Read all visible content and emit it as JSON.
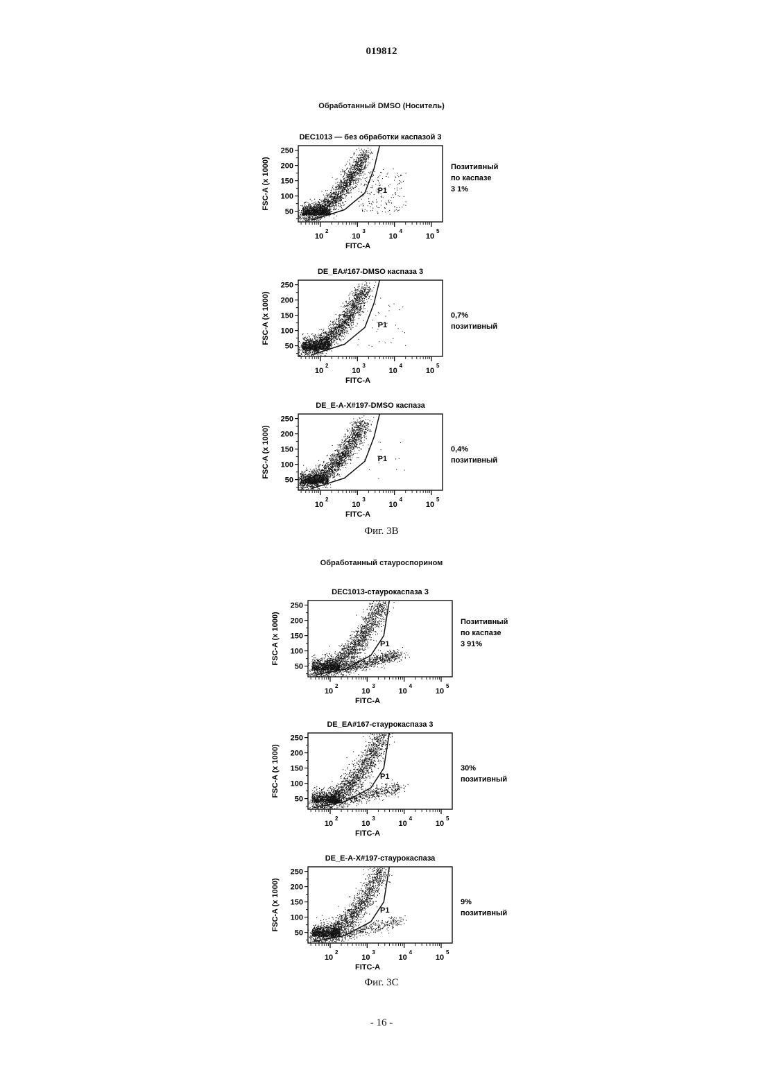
{
  "page": {
    "number": "019812",
    "footer": "- 16 -"
  },
  "sections": [
    {
      "title": "Обработанный DMSO (Носитель)",
      "caption": "Фиг. 3B"
    },
    {
      "title": "Обработанный стауроспорином",
      "caption": "Фиг. 3C"
    }
  ],
  "chart_data": [
    {
      "type": "scatter",
      "title": "DEC1013 — без обработки каспазой 3",
      "xlabel": "FITC-A",
      "ylabel": "FSC-A (x 1000)",
      "x_scale": "log",
      "x_ticks": [
        "10",
        "10",
        "10",
        "10"
      ],
      "x_tick_exponents": [
        "2",
        "3",
        "4",
        "5"
      ],
      "y_ticks": [
        "250",
        "200",
        "150",
        "100",
        "50"
      ],
      "y_tick_values": [
        250,
        200,
        150,
        100,
        50
      ],
      "gate_label": "P1",
      "annotation": [
        "Позитивный",
        "по каспазе",
        "3 1%"
      ],
      "population": "dmso",
      "shift": 0.0,
      "extra_spread": 1.0
    },
    {
      "type": "scatter",
      "title": "DE_EA#167-DMSO каспаза 3",
      "xlabel": "FITC-A",
      "ylabel": "FSC-A (x 1000)",
      "x_scale": "log",
      "x_ticks": [
        "10",
        "10",
        "10",
        "10"
      ],
      "x_tick_exponents": [
        "2",
        "3",
        "4",
        "5"
      ],
      "y_ticks": [
        "250",
        "200",
        "150",
        "100",
        "50"
      ],
      "y_tick_values": [
        250,
        200,
        150,
        100,
        50
      ],
      "gate_label": "P1",
      "annotation": [
        "0,7%",
        "позитивный"
      ],
      "population": "dmso",
      "shift": 0.0,
      "extra_spread": 0.2
    },
    {
      "type": "scatter",
      "title": "DE_E-A-X#197-DMSO каспаза",
      "xlabel": "FITC-A",
      "ylabel": "FSC-A (x 1000)",
      "x_scale": "log",
      "x_ticks": [
        "10",
        "10",
        "10",
        "10"
      ],
      "x_tick_exponents": [
        "2",
        "3",
        "4",
        "5"
      ],
      "y_ticks": [
        "250",
        "200",
        "150",
        "100",
        "50"
      ],
      "y_tick_values": [
        250,
        200,
        150,
        100,
        50
      ],
      "gate_label": "P1",
      "annotation": [
        "0,4%",
        "позитивный"
      ],
      "population": "dmso",
      "shift": -0.05,
      "extra_spread": 0.1
    },
    {
      "type": "scatter",
      "title": "DEC1013-стаурокаспаза 3",
      "xlabel": "FITC-A",
      "ylabel": "FSC-A (x 1000)",
      "x_scale": "log",
      "x_ticks": [
        "10",
        "10",
        "10",
        "10"
      ],
      "x_tick_exponents": [
        "2",
        "3",
        "4",
        "5"
      ],
      "y_ticks": [
        "250",
        "200",
        "150",
        "100",
        "50"
      ],
      "y_tick_values": [
        250,
        200,
        150,
        100,
        50
      ],
      "gate_label": "P1",
      "annotation": [
        "Позитивный",
        "по каспазе",
        "3 91%"
      ],
      "population": "stauro",
      "shift": 0.0,
      "extra_spread": 1.0
    },
    {
      "type": "scatter",
      "title": "DE_EA#167-стаурокаспаза 3",
      "xlabel": "FITC-A",
      "ylabel": "FSC-A (x 1000)",
      "x_scale": "log",
      "x_ticks": [
        "10",
        "10",
        "10",
        "10"
      ],
      "x_tick_exponents": [
        "2",
        "3",
        "4",
        "5"
      ],
      "y_ticks": [
        "250",
        "200",
        "150",
        "100",
        "50"
      ],
      "y_tick_values": [
        250,
        200,
        150,
        100,
        50
      ],
      "gate_label": "P1",
      "annotation": [
        "30%",
        "позитивный"
      ],
      "population": "stauro",
      "shift": 0.0,
      "extra_spread": 0.6
    },
    {
      "type": "scatter",
      "title": "DE_E-A-X#197-стаурокаспаза",
      "xlabel": "FITC-A",
      "ylabel": "FSC-A (x 1000)",
      "x_scale": "log",
      "x_ticks": [
        "10",
        "10",
        "10",
        "10"
      ],
      "x_tick_exponents": [
        "2",
        "3",
        "4",
        "5"
      ],
      "y_ticks": [
        "250",
        "200",
        "150",
        "100",
        "50"
      ],
      "y_tick_values": [
        250,
        200,
        150,
        100,
        50
      ],
      "gate_label": "P1",
      "annotation": [
        "9%",
        "позитивный"
      ],
      "population": "stauro",
      "shift": 0.0,
      "extra_spread": 0.35
    }
  ]
}
